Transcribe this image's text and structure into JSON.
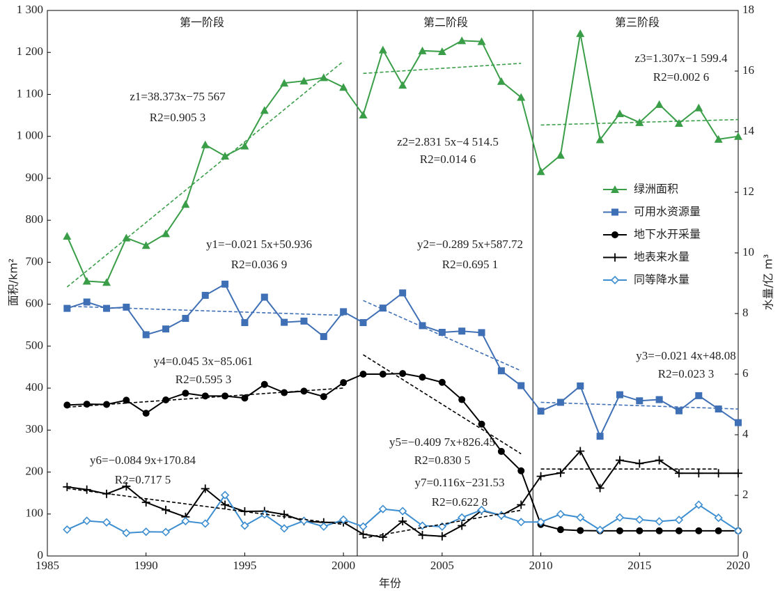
{
  "chart_data": {
    "type": "line",
    "xlabel": "年份",
    "ylabel": "面积/km²",
    "y2label": "水量/亿 m³",
    "x": [
      1986,
      1987,
      1988,
      1989,
      1990,
      1991,
      1992,
      1993,
      1994,
      1995,
      1996,
      1997,
      1998,
      1999,
      2000,
      2001,
      2002,
      2003,
      2004,
      2005,
      2006,
      2007,
      2008,
      2009,
      2010,
      2011,
      2012,
      2013,
      2014,
      2015,
      2016,
      2017,
      2018,
      2019,
      2020
    ],
    "xlim": [
      1985,
      2020
    ],
    "xticks": [
      1985,
      1990,
      1995,
      2000,
      2005,
      2010,
      2015,
      2020
    ],
    "ylim": [
      0,
      1300
    ],
    "yticks": [
      0,
      100,
      200,
      300,
      400,
      500,
      600,
      700,
      800,
      900,
      {
        "value": 1000,
        "label": "1 000"
      },
      {
        "value": 1100,
        "label": "1 100"
      },
      {
        "value": 1200,
        "label": "1 200"
      },
      {
        "value": 1300,
        "label": "1 300"
      }
    ],
    "y2lim": [
      0,
      18
    ],
    "y2ticks": [
      0,
      2,
      4,
      6,
      8,
      10,
      12,
      14,
      16,
      18
    ],
    "series": [
      {
        "name": "绿洲面积",
        "color": "#3a9e48",
        "marker": "triangle",
        "axis": "y",
        "values": [
          762,
          655,
          652,
          758,
          740,
          768,
          838,
          980,
          953,
          977,
          1062,
          1127,
          1132,
          1140,
          1117,
          1051,
          1206,
          1122,
          1204,
          1202,
          1228,
          1226,
          1131,
          1093,
          916,
          955,
          1245,
          992,
          1054,
          1033,
          1076,
          1031,
          1068,
          993,
          1000
        ]
      },
      {
        "name": "可用水资源量",
        "color": "#3f6fb5",
        "marker": "square",
        "axis": "y2",
        "values": [
          8.17,
          8.38,
          8.17,
          8.21,
          7.3,
          7.49,
          7.84,
          8.6,
          8.97,
          7.7,
          8.54,
          7.71,
          7.75,
          7.24,
          8.06,
          7.7,
          8.18,
          8.68,
          7.6,
          7.38,
          7.42,
          7.37,
          6.11,
          5.62,
          4.78,
          5.07,
          5.61,
          3.95,
          5.32,
          5.12,
          5.16,
          4.79,
          5.29,
          4.85,
          4.4
        ]
      },
      {
        "name": "地下水开采量",
        "color": "#000000",
        "marker": "circle",
        "axis": "y2",
        "values": [
          4.98,
          5.01,
          5.0,
          5.14,
          4.71,
          5.15,
          5.37,
          5.28,
          5.28,
          5.21,
          5.66,
          5.39,
          5.44,
          5.26,
          5.72,
          6.0,
          6.0,
          6.02,
          5.9,
          5.73,
          5.16,
          4.35,
          3.45,
          2.81,
          1.04,
          0.87,
          0.84,
          0.83,
          0.83,
          0.83,
          0.83,
          0.83,
          0.83,
          0.83,
          0.83
        ]
      },
      {
        "name": "地表来水量",
        "color": "#000000",
        "marker": "plus",
        "axis": "y2",
        "values": [
          2.28,
          2.19,
          2.05,
          2.3,
          1.77,
          1.52,
          1.29,
          2.22,
          1.69,
          1.47,
          1.48,
          1.37,
          1.15,
          1.11,
          1.11,
          0.72,
          0.62,
          1.15,
          0.69,
          0.65,
          1.0,
          1.5,
          1.34,
          1.69,
          2.63,
          2.74,
          3.46,
          2.24,
          3.16,
          3.05,
          3.16,
          2.73,
          2.73,
          2.73,
          2.73
        ]
      },
      {
        "name": "同等降水量",
        "color": "#3d8ed0",
        "marker": "diamond",
        "axis": "y2",
        "values": [
          0.87,
          1.16,
          1.11,
          0.76,
          0.8,
          0.79,
          1.15,
          1.07,
          2.01,
          1.0,
          1.37,
          0.91,
          1.16,
          0.97,
          1.2,
          0.97,
          1.55,
          1.48,
          1.0,
          0.97,
          1.27,
          1.52,
          1.34,
          1.12,
          1.12,
          1.38,
          1.27,
          0.86,
          1.27,
          1.2,
          1.14,
          1.19,
          1.69,
          1.26,
          0.83
        ]
      }
    ],
    "stage_dividers": [
      2000.7,
      2009.6
    ],
    "stages": [
      "第一阶段",
      "第二阶段",
      "第三阶段"
    ],
    "trendlines": [
      {
        "series": 0,
        "axis": "y",
        "x": [
          1986,
          2000
        ],
        "y": [
          641,
          1179
        ],
        "equation": "z1=38.373x−75 567",
        "r2": "R2=0.905 3"
      },
      {
        "series": 0,
        "axis": "y",
        "x": [
          2001,
          2009
        ],
        "y": [
          1150,
          1174
        ],
        "equation": "z2=2.831 5x−4 514.5",
        "r2": "R2=0.014 6"
      },
      {
        "series": 0,
        "axis": "y",
        "x": [
          2010,
          2020
        ],
        "y": [
          1027,
          1040
        ],
        "equation": "z3=1.307x−1 599.4",
        "r2": "R2=0.002 6"
      },
      {
        "series": 1,
        "axis": "y2",
        "x": [
          1986,
          2000
        ],
        "y": [
          8.24,
          7.94
        ],
        "equation": "y1=−0.021 5x+50.936",
        "r2": "R2=0.036 9"
      },
      {
        "series": 1,
        "axis": "y2",
        "x": [
          2001,
          2009
        ],
        "y": [
          8.43,
          6.11
        ],
        "equation": "y2=−0.289 5x+587.72",
        "r2": "R2=0.695 1"
      },
      {
        "series": 1,
        "axis": "y2",
        "x": [
          2010,
          2020
        ],
        "y": [
          5.07,
          4.85
        ],
        "equation": "y3=−0.021 4x+48.08",
        "r2": "R2=0.023 3"
      },
      {
        "series": 2,
        "axis": "y2",
        "x": [
          1986,
          2000
        ],
        "y": [
          4.91,
          5.54
        ],
        "equation": "y4=0.045 3x−85.061",
        "r2": "R2=0.595 3"
      },
      {
        "series": 2,
        "axis": "y2",
        "x": [
          2001,
          2009
        ],
        "y": [
          6.64,
          3.37
        ],
        "equation": "y5=−0.409 7x+826.45",
        "r2": "R2=0.830 5"
      },
      {
        "series": 3,
        "axis": "y2",
        "x": [
          1986,
          2000
        ],
        "y": [
          2.23,
          1.04
        ],
        "equation": "y6=−0.084 9x+170.84",
        "r2": "R2=0.717 5"
      },
      {
        "series": 3,
        "axis": "y2",
        "x": [
          2001,
          2009
        ],
        "y": [
          0.59,
          1.51
        ],
        "equation": "y7=0.116x−231.53",
        "r2": "R2=0.622 8"
      },
      {
        "series": 3,
        "axis": "y2",
        "x": [
          2010,
          2019
        ],
        "y": [
          2.87,
          2.87
        ]
      }
    ]
  }
}
